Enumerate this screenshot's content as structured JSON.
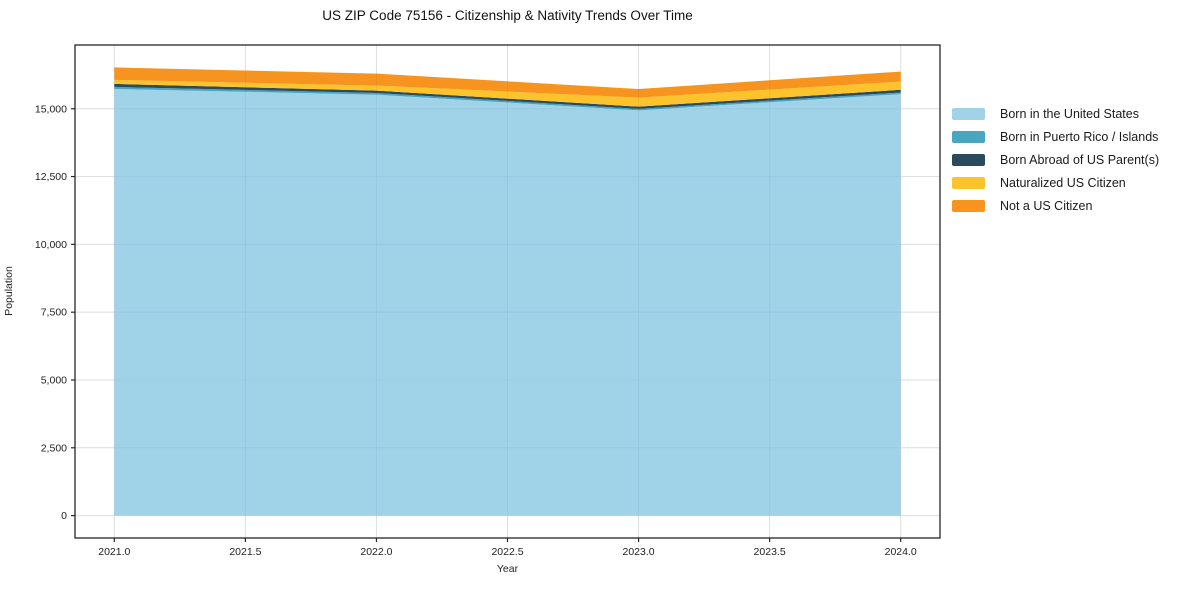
{
  "page": {
    "background": "#ffffff"
  },
  "chart_data": {
    "type": "area",
    "stacked": true,
    "title": "US ZIP Code 75156 - Citizenship & Nativity Trends Over Time",
    "xlabel": "Year",
    "ylabel": "Population",
    "x": [
      2021,
      2022,
      2023,
      2024
    ],
    "series": [
      {
        "name": "Born in the United States",
        "color": "#a0d2e8",
        "values": [
          15730,
          15520,
          14940,
          15540
        ]
      },
      {
        "name": "Born in Puerto Rico / Islands",
        "color": "#48a7bf",
        "values": [
          75,
          60,
          55,
          60
        ]
      },
      {
        "name": "Born Abroad of US Parent(s)",
        "color": "#2b4a5e",
        "values": [
          110,
          90,
          85,
          100
        ]
      },
      {
        "name": "Naturalized US Citizen",
        "color": "#fdc32d",
        "values": [
          150,
          185,
          330,
          300
        ]
      },
      {
        "name": "Not a US Citizen",
        "color": "#f79420",
        "values": [
          460,
          440,
          320,
          370
        ]
      }
    ],
    "xlim": [
      2020.85,
      2024.15
    ],
    "ylim": [
      -826,
      17351
    ],
    "xticks": [
      {
        "v": 2021.0,
        "label": "2021.0"
      },
      {
        "v": 2021.5,
        "label": "2021.5"
      },
      {
        "v": 2022.0,
        "label": "2022.0"
      },
      {
        "v": 2022.5,
        "label": "2022.5"
      },
      {
        "v": 2023.0,
        "label": "2023.0"
      },
      {
        "v": 2023.5,
        "label": "2023.5"
      },
      {
        "v": 2024.0,
        "label": "2024.0"
      }
    ],
    "yticks": [
      {
        "v": 0,
        "label": "0"
      },
      {
        "v": 2500,
        "label": "2,500"
      },
      {
        "v": 5000,
        "label": "5,000"
      },
      {
        "v": 7500,
        "label": "7,500"
      },
      {
        "v": 10000,
        "label": "10,000"
      },
      {
        "v": 12500,
        "label": "12,500"
      },
      {
        "v": 15000,
        "label": "15,000"
      }
    ],
    "grid": true,
    "legend_position": "right-outside",
    "colors": {
      "spine": "#262626",
      "grid": "#e8e8e8",
      "tick_text": "#222222",
      "title_text": "#111111"
    }
  }
}
